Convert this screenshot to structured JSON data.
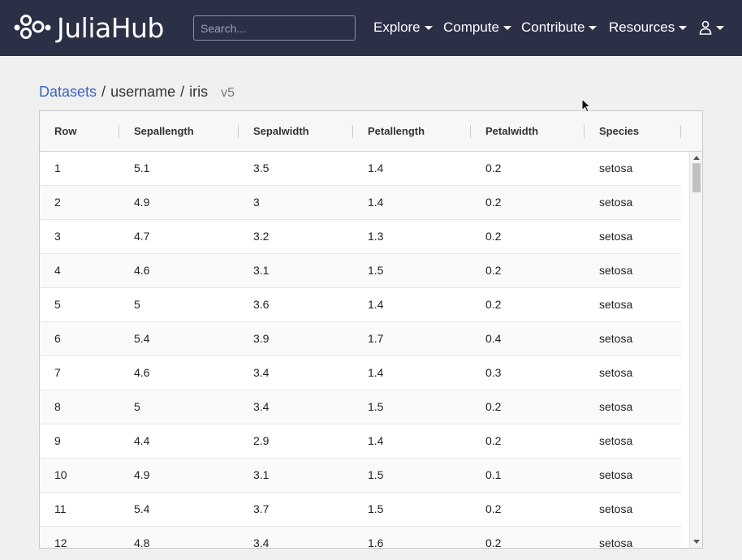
{
  "header": {
    "brand": "JuliaHub",
    "search_placeholder": "Search...",
    "menu": [
      {
        "label": "Explore"
      },
      {
        "label": "Compute"
      },
      {
        "label": "Contribute"
      },
      {
        "label": "Resources"
      }
    ],
    "user_icon": "user-icon"
  },
  "breadcrumb": {
    "root": "Datasets",
    "separator": "/",
    "owner": "username",
    "name": "iris",
    "version": "v5"
  },
  "table": {
    "columns": [
      "Row",
      "Sepallength",
      "Sepalwidth",
      "Petallength",
      "Petalwidth",
      "Species"
    ],
    "rows": [
      [
        "1",
        "5.1",
        "3.5",
        "1.4",
        "0.2",
        "setosa"
      ],
      [
        "2",
        "4.9",
        "3",
        "1.4",
        "0.2",
        "setosa"
      ],
      [
        "3",
        "4.7",
        "3.2",
        "1.3",
        "0.2",
        "setosa"
      ],
      [
        "4",
        "4.6",
        "3.1",
        "1.5",
        "0.2",
        "setosa"
      ],
      [
        "5",
        "5",
        "3.6",
        "1.4",
        "0.2",
        "setosa"
      ],
      [
        "6",
        "5.4",
        "3.9",
        "1.7",
        "0.4",
        "setosa"
      ],
      [
        "7",
        "4.6",
        "3.4",
        "1.4",
        "0.3",
        "setosa"
      ],
      [
        "8",
        "5",
        "3.4",
        "1.5",
        "0.2",
        "setosa"
      ],
      [
        "9",
        "4.4",
        "2.9",
        "1.4",
        "0.2",
        "setosa"
      ],
      [
        "10",
        "4.9",
        "3.1",
        "1.5",
        "0.1",
        "setosa"
      ],
      [
        "11",
        "5.4",
        "3.7",
        "1.5",
        "0.2",
        "setosa"
      ],
      [
        "12",
        "4.8",
        "3.4",
        "1.6",
        "0.2",
        "setosa"
      ]
    ]
  },
  "colors": {
    "navbar_bg": "#2b3047",
    "link": "#3b63c4",
    "page_bg": "#f0f0f0"
  }
}
